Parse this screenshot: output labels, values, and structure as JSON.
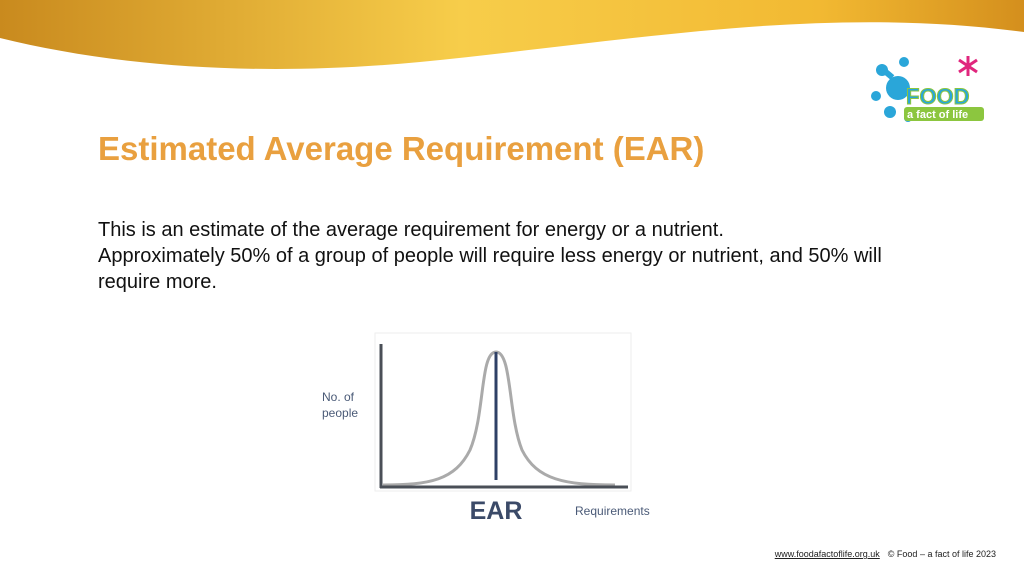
{
  "header": {
    "title": "Estimated Average Requirement (EAR)"
  },
  "logo": {
    "name": "FOOD",
    "tagline": "a fact of life"
  },
  "body": [
    "This is an estimate of the average requirement for energy or a nutrient.",
    "Approximately 50% of a group of people will require less energy or nutrient, and 50% will require more."
  ],
  "diagram": {
    "y_label": "No. of people",
    "marker": "EAR",
    "x_label": "Requirements"
  },
  "footer": {
    "link": "www.foodafactoflife.org.uk",
    "copyright": "© Food – a fact of life 2023"
  }
}
